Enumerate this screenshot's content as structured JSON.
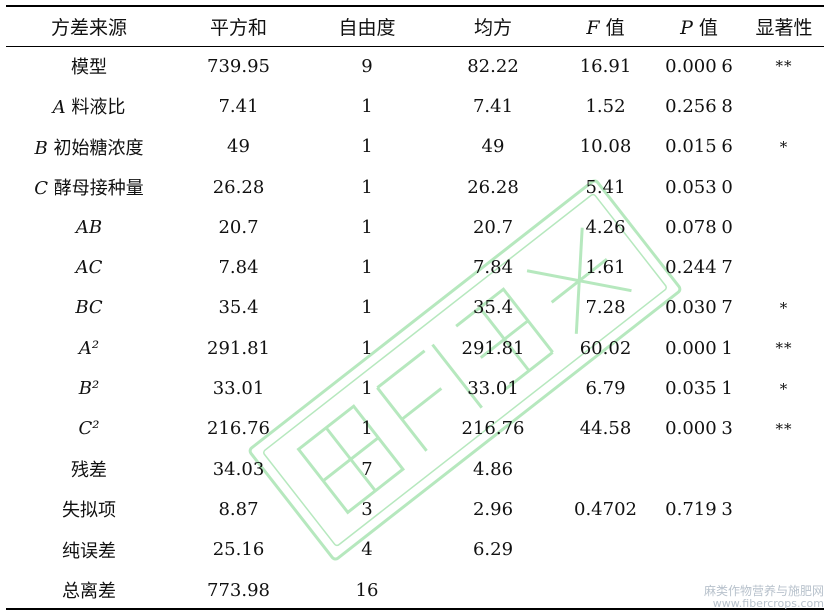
{
  "table": {
    "headers": [
      "方差来源",
      "平方和",
      "自由度",
      "均方",
      "F 值",
      "P 值",
      "显著性"
    ],
    "rows": [
      {
        "source": "模型",
        "ss": "739.95",
        "df": "9",
        "ms": "82.22",
        "f": "16.91",
        "p": "0.000 6",
        "sig": "**"
      },
      {
        "source": "A 料液比",
        "ss": "7.41",
        "df": "1",
        "ms": "7.41",
        "f": "1.52",
        "p": "0.256 8",
        "sig": ""
      },
      {
        "source": "B 初始糖浓度",
        "ss": "49",
        "df": "1",
        "ms": "49",
        "f": "10.08",
        "p": "0.015 6",
        "sig": "*"
      },
      {
        "source": "C 酵母接种量",
        "ss": "26.28",
        "df": "1",
        "ms": "26.28",
        "f": "5.41",
        "p": "0.053 0",
        "sig": ""
      },
      {
        "source": "AB",
        "ss": "20.7",
        "df": "1",
        "ms": "20.7",
        "f": "4.26",
        "p": "0.078 0",
        "sig": ""
      },
      {
        "source": "AC",
        "ss": "7.84",
        "df": "1",
        "ms": "7.84",
        "f": "1.61",
        "p": "0.244 7",
        "sig": ""
      },
      {
        "source": "BC",
        "ss": "35.4",
        "df": "1",
        "ms": "35.4",
        "f": "7.28",
        "p": "0.030 7",
        "sig": "*"
      },
      {
        "source": "A²",
        "ss": "291.81",
        "df": "1",
        "ms": "291.81",
        "f": "60.02",
        "p": "0.000 1",
        "sig": "**"
      },
      {
        "source": "B²",
        "ss": "33.01",
        "df": "1",
        "ms": "33.01",
        "f": "6.79",
        "p": "0.035 1",
        "sig": "*"
      },
      {
        "source": "C²",
        "ss": "216.76",
        "df": "1",
        "ms": "216.76",
        "f": "44.58",
        "p": "0.000 3",
        "sig": "**"
      },
      {
        "source": "残差",
        "ss": "34.03",
        "df": "7",
        "ms": "4.86",
        "f": "",
        "p": "",
        "sig": ""
      },
      {
        "source": "失拟项",
        "ss": "8.87",
        "df": "3",
        "ms": "2.96",
        "f": "0.4702",
        "p": "0.719 3",
        "sig": ""
      },
      {
        "source": "纯误差",
        "ss": "25.16",
        "df": "4",
        "ms": "6.29",
        "f": "",
        "p": "",
        "sig": ""
      },
      {
        "source": "总离差",
        "ss": "773.98",
        "df": "16",
        "ms": "",
        "f": "",
        "p": "",
        "sig": ""
      }
    ]
  },
  "watermark": {
    "line1": "麻类作物营养与施肥网",
    "line2": "www.fibercrops.com"
  },
  "colors": {
    "text": "#111111",
    "rule": "#000000",
    "watermark_stamp": "#7cd68a",
    "watermark_footer": "#b8c2cc"
  }
}
